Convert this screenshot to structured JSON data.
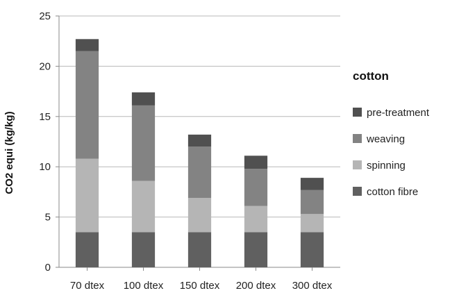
{
  "chart_data": {
    "type": "bar",
    "stacked": true,
    "title": "",
    "xlabel": "",
    "ylabel": "CO2 equi (kg/kg)",
    "ylim": [
      0,
      25
    ],
    "yticks": [
      0,
      5,
      10,
      15,
      20,
      25
    ],
    "grid": "horizontal",
    "legend_title": "cotton",
    "legend_position": "right",
    "categories": [
      "70 dtex",
      "100 dtex",
      "150 dtex",
      "200 dtex",
      "300 dtex"
    ],
    "series": [
      {
        "name": "cotton fibre",
        "color": "#606060",
        "values": [
          3.5,
          3.5,
          3.5,
          3.5,
          3.5
        ]
      },
      {
        "name": "spinning",
        "color": "#b5b5b5",
        "values": [
          7.3,
          5.1,
          3.4,
          2.6,
          1.8
        ]
      },
      {
        "name": "weaving",
        "color": "#838383",
        "values": [
          10.7,
          7.5,
          5.1,
          3.7,
          2.4
        ]
      },
      {
        "name": "pre-treatment",
        "color": "#505050",
        "values": [
          1.2,
          1.3,
          1.2,
          1.3,
          1.2
        ]
      }
    ],
    "legend_order": [
      "pre-treatment",
      "weaving",
      "spinning",
      "cotton fibre"
    ]
  }
}
